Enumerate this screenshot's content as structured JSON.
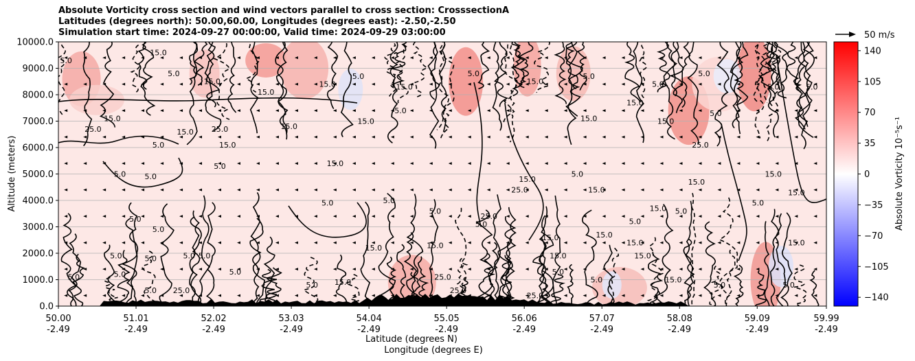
{
  "chart_data": {
    "type": "heatmap",
    "title_lines": [
      "Absolute Vorticity cross section and wind vectors parallel to cross section: CrosssectionA",
      "Latitudes (degrees north): 50.00,60.00, Longitudes (degrees east): -2.50,-2.50",
      "Simulation start time: 2024-09-27 00:00:00, Valid time: 2024-09-29 03:00:00"
    ],
    "ylabel": "Altitude (meters)",
    "xlabel_lines": [
      "Latitude (degrees N)",
      "Longitude (degrees E)"
    ],
    "ylim": [
      0,
      10000
    ],
    "yticks": [
      0,
      1000,
      2000,
      3000,
      4000,
      5000,
      6000,
      7000,
      8000,
      9000,
      10000
    ],
    "ytick_labels": [
      "0.0",
      "1000.0",
      "2000.0",
      "3000.0",
      "4000.0",
      "5000.0",
      "6000.0",
      "7000.0",
      "8000.0",
      "9000.0",
      "10000.0"
    ],
    "xlim": [
      50.0,
      59.99
    ],
    "xticks": [
      50.0,
      51.01,
      52.02,
      53.03,
      54.04,
      55.05,
      56.06,
      57.07,
      58.08,
      59.09,
      59.99
    ],
    "xtick_lat_labels": [
      "50.00",
      "51.01",
      "52.02",
      "53.03",
      "54.04",
      "55.05",
      "56.06",
      "57.07",
      "58.08",
      "59.09",
      "59.99"
    ],
    "xtick_lon_labels": [
      "-2.49",
      "-2.49",
      "-2.49",
      "-2.49",
      "-2.49",
      "-2.49",
      "-2.49",
      "-2.49",
      "-2.49",
      "-2.49",
      "-2.49"
    ],
    "grid": "horizontal",
    "colorbar": {
      "label": "Absolute Vorticity 10⁻⁵s⁻¹",
      "range": [
        -150,
        150
      ],
      "ticks": [
        140,
        105,
        70,
        35,
        0,
        -35,
        -70,
        -105,
        -140
      ],
      "tick_labels": [
        "140",
        "105",
        "70",
        "35",
        "0",
        "−35",
        "−70",
        "−105",
        "−140"
      ],
      "colors": {
        "low": "#0000ff",
        "mid": "#ffffff",
        "high": "#ff0000"
      }
    },
    "quiver_key": {
      "label": "50 m/s",
      "value": 50
    },
    "contour_labels": [
      {
        "text": "5.0",
        "x": 50.1,
        "y": 9200
      },
      {
        "text": "15.0",
        "x": 51.3,
        "y": 9500
      },
      {
        "text": "5.0",
        "x": 51.5,
        "y": 8700
      },
      {
        "text": "15.0",
        "x": 52.0,
        "y": 8400
      },
      {
        "text": "15.0",
        "x": 52.7,
        "y": 8000
      },
      {
        "text": "15.0",
        "x": 53.5,
        "y": 8300
      },
      {
        "text": "5.0",
        "x": 53.9,
        "y": 8600
      },
      {
        "text": "15.0",
        "x": 54.5,
        "y": 8200
      },
      {
        "text": "5.0",
        "x": 55.4,
        "y": 8700
      },
      {
        "text": "15.0",
        "x": 56.2,
        "y": 8400
      },
      {
        "text": "5.0",
        "x": 56.9,
        "y": 8600
      },
      {
        "text": "5.0",
        "x": 57.8,
        "y": 8300
      },
      {
        "text": "5.0",
        "x": 58.4,
        "y": 8700
      },
      {
        "text": "5.0",
        "x": 59.3,
        "y": 8200
      },
      {
        "text": "5.0",
        "x": 59.8,
        "y": 8200
      },
      {
        "text": "15.0",
        "x": 50.7,
        "y": 7000
      },
      {
        "text": "25.0",
        "x": 50.45,
        "y": 6600
      },
      {
        "text": "15.0",
        "x": 51.65,
        "y": 6500
      },
      {
        "text": "5.0",
        "x": 51.3,
        "y": 6000
      },
      {
        "text": "25.0",
        "x": 52.1,
        "y": 6600
      },
      {
        "text": "15.0",
        "x": 52.2,
        "y": 6000
      },
      {
        "text": "15.0",
        "x": 53.0,
        "y": 6700
      },
      {
        "text": "15.0",
        "x": 54.0,
        "y": 6900
      },
      {
        "text": "15.0",
        "x": 56.9,
        "y": 7000
      },
      {
        "text": "15.0",
        "x": 57.9,
        "y": 6900
      },
      {
        "text": "5.0",
        "x": 58.55,
        "y": 7200
      },
      {
        "text": "25.0",
        "x": 58.35,
        "y": 6000
      },
      {
        "text": "5.0",
        "x": 54.45,
        "y": 7300
      },
      {
        "text": "15.0",
        "x": 57.5,
        "y": 7600
      },
      {
        "text": "5.0",
        "x": 50.8,
        "y": 4900
      },
      {
        "text": "5.0",
        "x": 51.2,
        "y": 4800
      },
      {
        "text": "5.0",
        "x": 52.1,
        "y": 5200
      },
      {
        "text": "15.0",
        "x": 53.6,
        "y": 5300
      },
      {
        "text": "5.0",
        "x": 56.75,
        "y": 4900
      },
      {
        "text": "15.0",
        "x": 56.1,
        "y": 4700
      },
      {
        "text": "25.0",
        "x": 56.0,
        "y": 4300
      },
      {
        "text": "15.0",
        "x": 57.0,
        "y": 4300
      },
      {
        "text": "15.0",
        "x": 58.3,
        "y": 4600
      },
      {
        "text": "15.0",
        "x": 59.3,
        "y": 4900
      },
      {
        "text": "5.0",
        "x": 53.5,
        "y": 3800
      },
      {
        "text": "5.0",
        "x": 54.3,
        "y": 3900
      },
      {
        "text": "5.0",
        "x": 54.9,
        "y": 3500
      },
      {
        "text": "15.0",
        "x": 57.8,
        "y": 3600
      },
      {
        "text": "5.0",
        "x": 58.1,
        "y": 3500
      },
      {
        "text": "5.0",
        "x": 59.1,
        "y": 3800
      },
      {
        "text": "15.0",
        "x": 59.6,
        "y": 4200
      },
      {
        "text": "5.0",
        "x": 51.0,
        "y": 3200
      },
      {
        "text": "5.0",
        "x": 51.3,
        "y": 2800
      },
      {
        "text": "25.0",
        "x": 55.6,
        "y": 3300
      },
      {
        "text": "5.0",
        "x": 55.5,
        "y": 3000
      },
      {
        "text": "15.0",
        "x": 56.4,
        "y": 2500
      },
      {
        "text": "15.0",
        "x": 57.1,
        "y": 2600
      },
      {
        "text": "5.0",
        "x": 57.5,
        "y": 3100
      },
      {
        "text": "15.0",
        "x": 57.5,
        "y": 2300
      },
      {
        "text": "5.0",
        "x": 50.75,
        "y": 1800
      },
      {
        "text": "5.0",
        "x": 51.2,
        "y": 1700
      },
      {
        "text": "5.0",
        "x": 51.7,
        "y": 1800
      },
      {
        "text": "5.0",
        "x": 51.9,
        "y": 1800
      },
      {
        "text": "15.0",
        "x": 54.1,
        "y": 2100
      },
      {
        "text": "15.0",
        "x": 54.9,
        "y": 2200
      },
      {
        "text": "15.0",
        "x": 56.5,
        "y": 1800
      },
      {
        "text": "15.0",
        "x": 57.6,
        "y": 1800
      },
      {
        "text": "15.0",
        "x": 59.6,
        "y": 2300
      },
      {
        "text": "5.0",
        "x": 50.2,
        "y": 1000
      },
      {
        "text": "5.0",
        "x": 50.8,
        "y": 1100
      },
      {
        "text": "5.0",
        "x": 51.2,
        "y": 500
      },
      {
        "text": "25.0",
        "x": 51.6,
        "y": 500
      },
      {
        "text": "5.0",
        "x": 52.3,
        "y": 1200
      },
      {
        "text": "5.0",
        "x": 53.3,
        "y": 700
      },
      {
        "text": "15.0",
        "x": 53.7,
        "y": 800
      },
      {
        "text": "25.0",
        "x": 55.0,
        "y": 1000
      },
      {
        "text": "25.0",
        "x": 55.2,
        "y": 500
      },
      {
        "text": "5.0",
        "x": 56.5,
        "y": 1200
      },
      {
        "text": "5.0",
        "x": 57.0,
        "y": 900
      },
      {
        "text": "15.0",
        "x": 58.0,
        "y": 900
      },
      {
        "text": "25.0",
        "x": 56.2,
        "y": 300
      },
      {
        "text": "5.0",
        "x": 58.6,
        "y": 700
      },
      {
        "text": "5.0",
        "x": 59.5,
        "y": 700
      }
    ]
  }
}
